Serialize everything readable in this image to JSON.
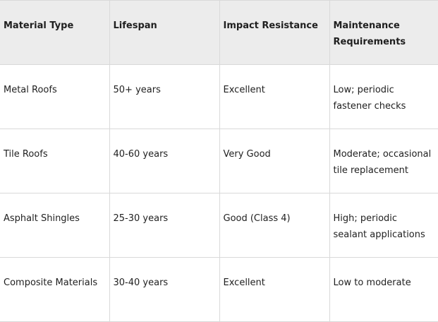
{
  "table": {
    "headers": [
      "Material Type",
      "Lifespan",
      "Impact Resistance",
      "Maintenance Requirements"
    ],
    "rows": [
      [
        "Metal Roofs",
        "50+ years",
        "Excellent",
        "Low; periodic fastener checks"
      ],
      [
        "Tile Roofs",
        "40-60 years",
        "Very Good",
        "Moderate; occasional tile replacement"
      ],
      [
        "Asphalt Shingles",
        "25-30 years",
        "Good (Class 4)",
        "High; periodic sealant applications"
      ],
      [
        "Composite Materials",
        "30-40 years",
        "Excellent",
        "Low to moderate"
      ]
    ]
  },
  "colors": {
    "header_background": "#ececec",
    "border": "#d9d9d9",
    "text": "#1f1f1f"
  }
}
